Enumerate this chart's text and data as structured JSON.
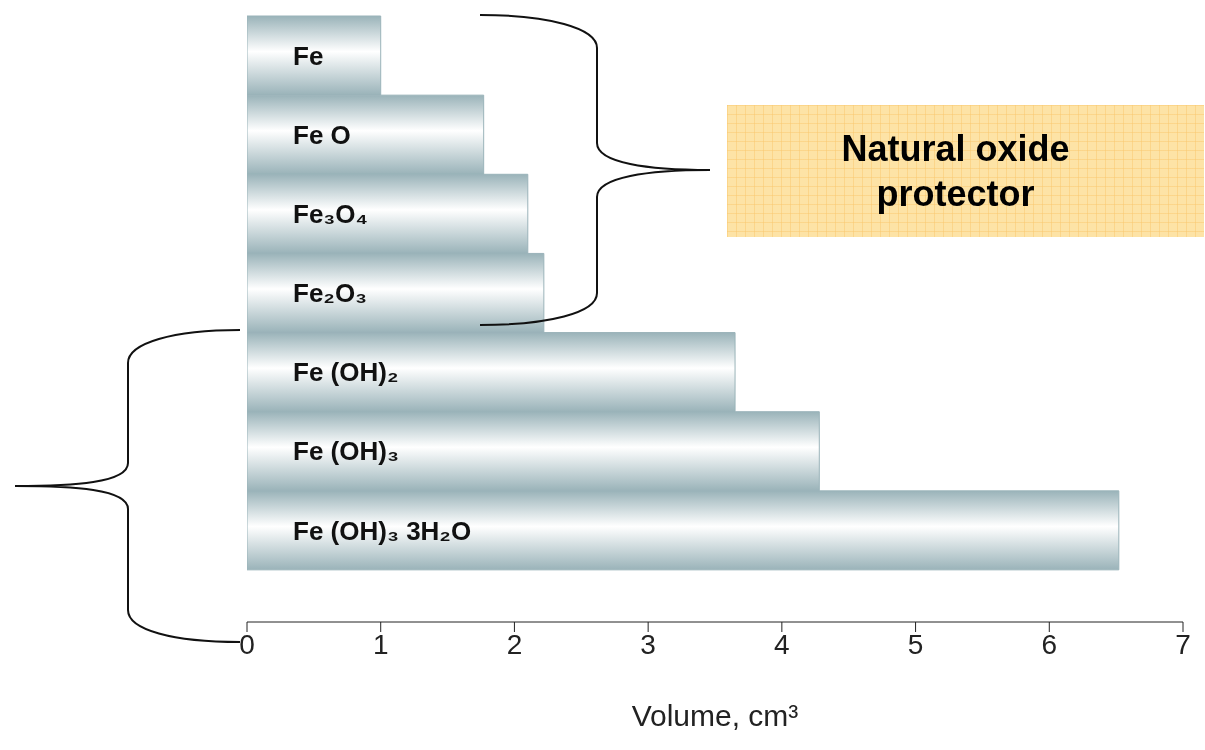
{
  "chart_data": {
    "type": "bar",
    "orientation": "horizontal",
    "categories": [
      "Fe",
      "Fe O",
      "Fe₃O₄",
      "Fe₂O₃",
      "Fe (OH)₂",
      "Fe (OH)₃",
      "Fe (OH)₃ 3H₂O"
    ],
    "values": [
      1.0,
      1.77,
      2.1,
      2.22,
      3.65,
      4.28,
      6.52
    ],
    "color": "#9ab3b9",
    "xlabel": "Volume, cm³",
    "xlim": [
      0,
      7
    ],
    "xticks": [
      0,
      1,
      2,
      3,
      4,
      5,
      6,
      7
    ],
    "annotations": [
      "Natural oxide protector"
    ],
    "grid": false,
    "legend": false
  }
}
